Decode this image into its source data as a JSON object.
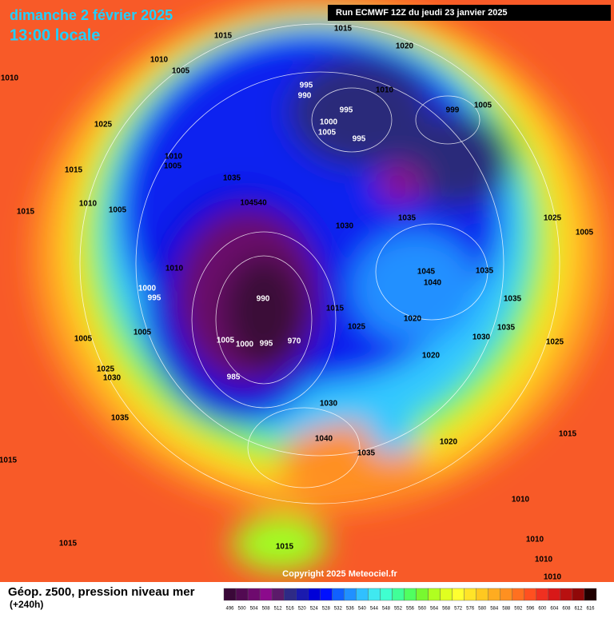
{
  "header": {
    "date": "dimanche 2 février 2025",
    "time": "13:00 locale",
    "run": "Run ECMWF 12Z du jeudi 23 janvier 2025"
  },
  "copyright": "Copyright 2025 Meteociel.fr",
  "footer": {
    "title": "Géop. z500, pression niveau mer",
    "lead": "(+240h)"
  },
  "legend": {
    "labels": [
      "496",
      "500",
      "504",
      "508",
      "512",
      "516",
      "520",
      "524",
      "528",
      "532",
      "536",
      "540",
      "544",
      "548",
      "552",
      "556",
      "560",
      "564",
      "568",
      "572",
      "576",
      "580",
      "584",
      "588",
      "592",
      "596",
      "600",
      "604",
      "608",
      "612",
      "616"
    ],
    "colors": [
      "#3a0838",
      "#520a52",
      "#6e0a6e",
      "#8c0a8c",
      "#5c1a6a",
      "#2e2a86",
      "#1a1aae",
      "#0000d8",
      "#0010ff",
      "#1060ff",
      "#2090ff",
      "#30c0ff",
      "#40e8f0",
      "#40ffd0",
      "#40ff98",
      "#50ff60",
      "#78f830",
      "#b0ff20",
      "#e0ff20",
      "#ffff30",
      "#ffe428",
      "#ffc820",
      "#ffac20",
      "#ff9020",
      "#ff7020",
      "#ff5020",
      "#f03020",
      "#d81818",
      "#b81010",
      "#900808",
      "#200000"
    ]
  },
  "isobars": [
    "1015",
    "1015",
    "1020",
    "1010",
    "1005",
    "1010",
    "1025",
    "995",
    "990",
    "1010",
    "995",
    "1000",
    "1005",
    "995",
    "1010",
    "1005",
    "1015",
    "1035",
    "1010",
    "1005",
    "1015",
    "104540",
    "1030",
    "1035",
    "1025",
    "1005",
    "1010",
    "1045",
    "1040",
    "1035",
    "1000",
    "995",
    "990",
    "1015",
    "1035",
    "1020",
    "1025",
    "1005",
    "1005",
    "1000",
    "995",
    "970",
    "1030",
    "1035",
    "1025",
    "1005",
    "1020",
    "1025",
    "1030",
    "985",
    "1035",
    "1030",
    "1040",
    "1035",
    "1020",
    "1015",
    "1015",
    "1010",
    "1015",
    "1015",
    "1010",
    "1010",
    "1010",
    "1005",
    "999"
  ]
}
